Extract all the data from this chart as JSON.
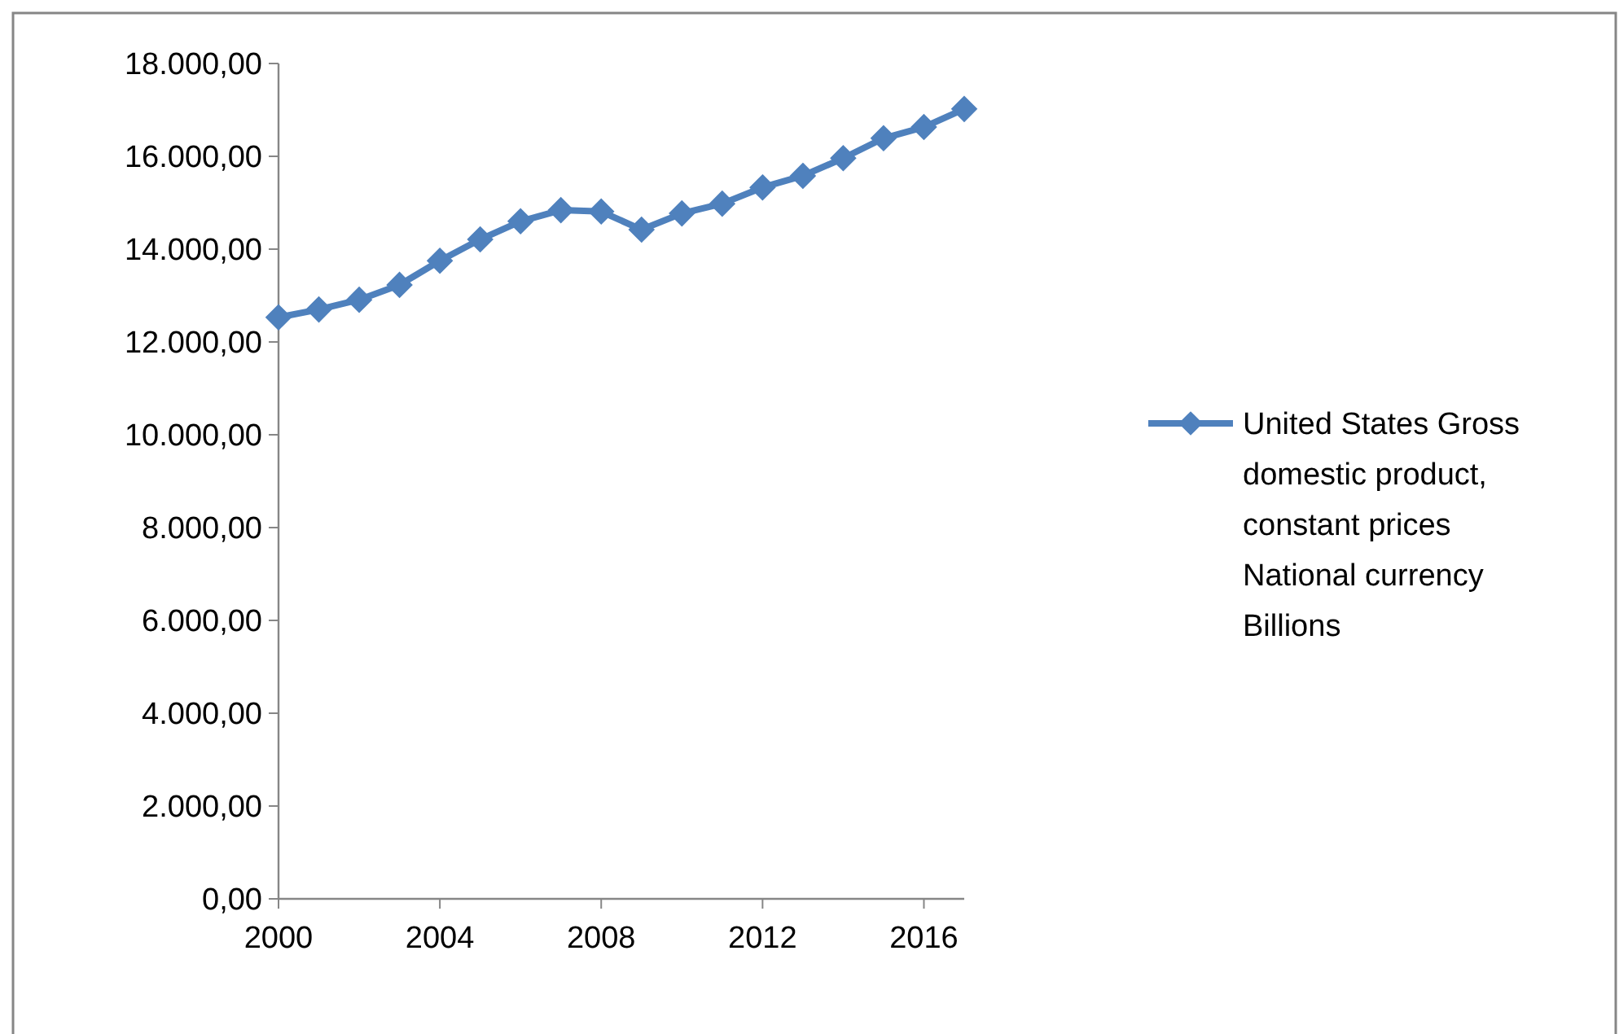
{
  "chart_data": {
    "type": "line",
    "x": [
      2000,
      2001,
      2002,
      2003,
      2004,
      2005,
      2006,
      2007,
      2008,
      2009,
      2010,
      2011,
      2012,
      2013,
      2014,
      2015,
      2016,
      2017
    ],
    "series": [
      {
        "name": "United States Gross domestic product, constant prices National currency Billions",
        "color": "#4f81bd",
        "values": [
          12530,
          12700,
          12910,
          13230,
          13750,
          14210,
          14600,
          14840,
          14810,
          14420,
          14770,
          14980,
          15330,
          15580,
          15960,
          16390,
          16630,
          17020
        ]
      }
    ],
    "xlim": [
      2000,
      2017
    ],
    "xticks": [
      2000,
      2004,
      2008,
      2012,
      2016
    ],
    "ylim": [
      0,
      18000
    ],
    "yticks": [
      {
        "value": 0,
        "label": "0,00"
      },
      {
        "value": 2000,
        "label": "2.000,00"
      },
      {
        "value": 4000,
        "label": "4.000,00"
      },
      {
        "value": 6000,
        "label": "6.000,00"
      },
      {
        "value": 8000,
        "label": "8.000,00"
      },
      {
        "value": 10000,
        "label": "10.000,00"
      },
      {
        "value": 12000,
        "label": "12.000,00"
      },
      {
        "value": 14000,
        "label": "14.000,00"
      },
      {
        "value": 16000,
        "label": "16.000,00"
      },
      {
        "value": 18000,
        "label": "18.000,00"
      }
    ],
    "grid": false,
    "legend": "right",
    "marker": "diamond",
    "line_style": "solid"
  }
}
